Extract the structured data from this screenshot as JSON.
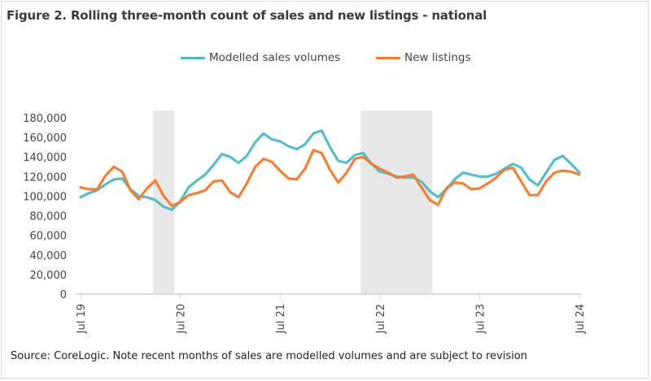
{
  "chart_data": {
    "type": "line",
    "title": "Figure 2. Rolling three-month count of sales and new listings - national",
    "xlabel": "",
    "ylabel": "",
    "x": [
      "Jul 19",
      "Aug 19",
      "Sep 19",
      "Oct 19",
      "Nov 19",
      "Dec 19",
      "Jan 20",
      "Feb 20",
      "Mar 20",
      "Apr 20",
      "May 20",
      "Jun 20",
      "Jul 20",
      "Aug 20",
      "Sep 20",
      "Oct 20",
      "Nov 20",
      "Dec 20",
      "Jan 21",
      "Feb 21",
      "Mar 21",
      "Apr 21",
      "May 21",
      "Jun 21",
      "Jul 21",
      "Aug 21",
      "Sep 21",
      "Oct 21",
      "Nov 21",
      "Dec 21",
      "Jan 22",
      "Feb 22",
      "Mar 22",
      "Apr 22",
      "May 22",
      "Jun 22",
      "Jul 22",
      "Aug 22",
      "Sep 22",
      "Oct 22",
      "Nov 22",
      "Dec 22",
      "Jan 23",
      "Feb 23",
      "Mar 23",
      "Apr 23",
      "May 23",
      "Jun 23",
      "Jul 23",
      "Aug 23",
      "Sep 23",
      "Oct 23",
      "Nov 23",
      "Dec 23",
      "Jan 24",
      "Feb 24",
      "Mar 24",
      "Apr 24",
      "May 24",
      "Jun 24",
      "Jul 24"
    ],
    "x_tick_labels": [
      "Jul 19",
      "Jul 20",
      "Jul 21",
      "Jul 22",
      "Jul 23",
      "Jul 24"
    ],
    "y_tick_labels": [
      "0",
      "20,000",
      "40,000",
      "60,000",
      "80,000",
      "100,000",
      "120,000",
      "140,000",
      "160,000",
      "180,000"
    ],
    "ylim": [
      0,
      180000
    ],
    "grid": false,
    "legend_position": "top-center",
    "shaded_periods": [
      {
        "start": "Apr 20",
        "end": "Jun 20"
      },
      {
        "start": "May 22",
        "end": "Jan 23"
      }
    ],
    "shade_color": "#e8e8e8",
    "series": [
      {
        "name": "Modelled sales volumes",
        "color": "#4fb9c5",
        "values": [
          99000,
          103000,
          106000,
          112000,
          117000,
          118000,
          107000,
          100000,
          99000,
          96000,
          89000,
          86000,
          95000,
          109000,
          116000,
          122000,
          132000,
          143000,
          140000,
          134000,
          141000,
          155000,
          164000,
          158000,
          156000,
          151000,
          148000,
          153000,
          164000,
          167000,
          150000,
          136000,
          134000,
          142000,
          144000,
          133000,
          125000,
          123000,
          120000,
          119000,
          119000,
          115000,
          105000,
          99000,
          107000,
          117000,
          124000,
          122000,
          120000,
          120000,
          123000,
          128000,
          133000,
          129000,
          117000,
          111000,
          124000,
          137000,
          141000,
          133000,
          124000
        ]
      },
      {
        "name": "New listings",
        "color": "#f07a2e",
        "values": [
          109000,
          107000,
          107000,
          121000,
          130000,
          125000,
          106000,
          97000,
          108000,
          116000,
          100000,
          90000,
          94000,
          101000,
          103000,
          106000,
          115000,
          116000,
          104000,
          99000,
          113000,
          130000,
          138000,
          135000,
          126000,
          118000,
          117000,
          128000,
          147000,
          144000,
          127000,
          114000,
          124000,
          138000,
          140000,
          133000,
          128000,
          124000,
          119000,
          120000,
          122000,
          109000,
          96000,
          91000,
          108000,
          114000,
          113000,
          107000,
          108000,
          113000,
          119000,
          127000,
          129000,
          115000,
          101000,
          101000,
          115000,
          124000,
          126000,
          125000,
          122000
        ]
      }
    ]
  },
  "source_note": "Source: CoreLogic. Note recent months of sales are modelled volumes and are subject to revision"
}
